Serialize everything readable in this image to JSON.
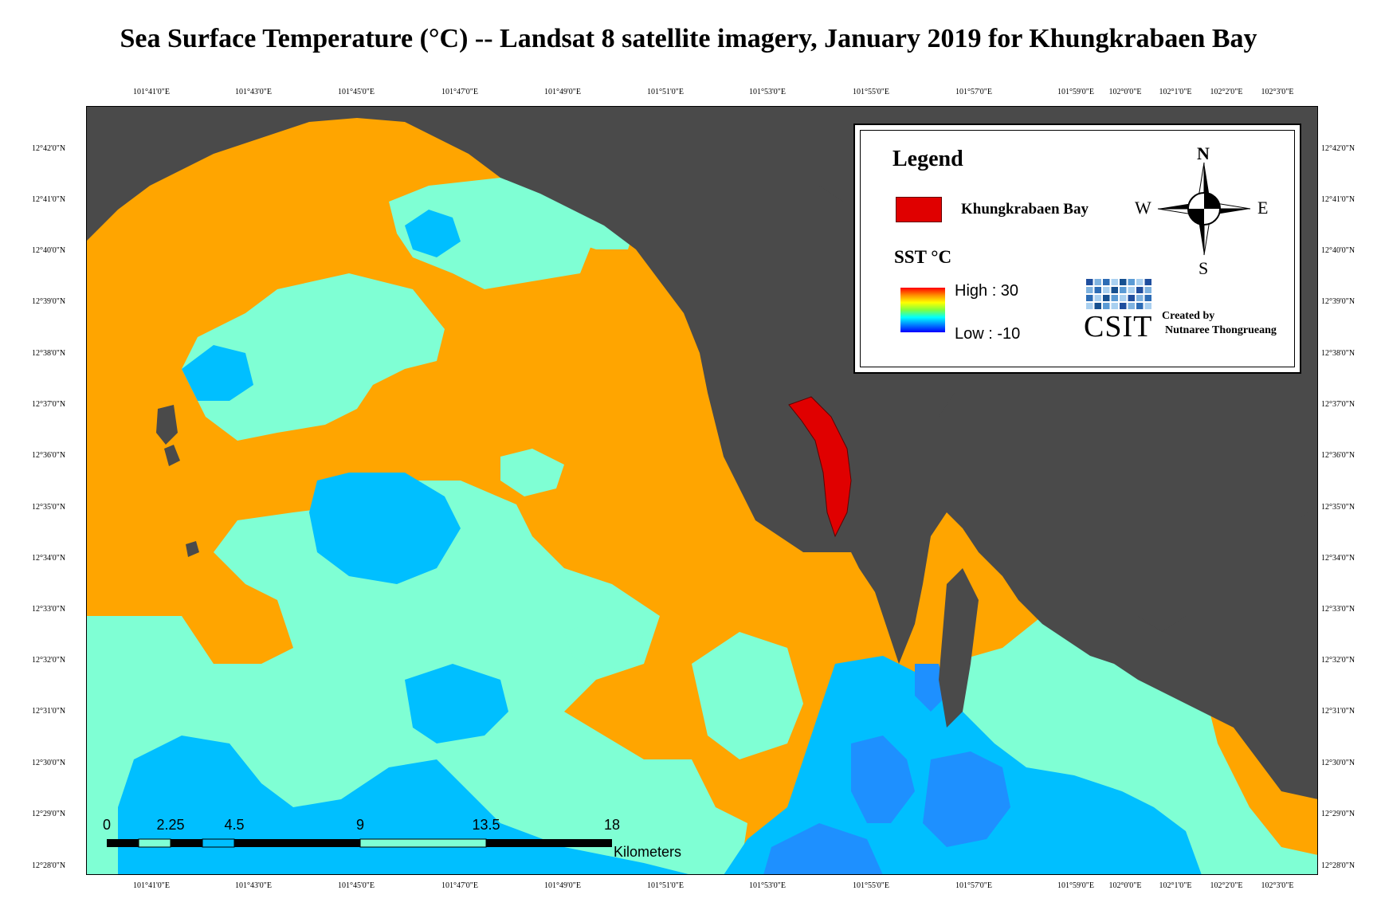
{
  "title": "Sea Surface Temperature (°C) -- Landsat 8 satellite imagery, January 2019 for Khungkrabaen Bay",
  "colors": {
    "land": "#4a4a4a",
    "sst_warm": "#ffa500",
    "sst_mid": "#7fffd4",
    "sst_cool": "#00bfff",
    "sst_cold": "#1e90ff",
    "bay": "#e00000"
  },
  "lon_labels": [
    "101°41'0\"E",
    "101°43'0\"E",
    "101°45'0\"E",
    "101°47'0\"E",
    "101°49'0\"E",
    "101°51'0\"E",
    "101°53'0\"E",
    "101°55'0\"E",
    "101°57'0\"E",
    "101°59'0\"E",
    "102°0'0\"E",
    "102°1'0\"E",
    "102°2'0\"E",
    "102°3'0\"E"
  ],
  "lat_labels": [
    "12°42'0\"N",
    "12°41'0\"N",
    "12°40'0\"N",
    "12°39'0\"N",
    "12°38'0\"N",
    "12°37'0\"N",
    "12°36'0\"N",
    "12°35'0\"N",
    "12°34'0\"N",
    "12°33'0\"N",
    "12°32'0\"N",
    "12°31'0\"N",
    "12°30'0\"N",
    "12°29'0\"N",
    "12°28'0\"N"
  ],
  "legend": {
    "title": "Legend",
    "bay_label": "Khungkrabaen Bay",
    "sst_label": "SST  °C",
    "high": "High : 30",
    "low": "Low : -10",
    "compass": {
      "n": "N",
      "s": "S",
      "e": "E",
      "w": "W"
    },
    "logo": "CSIT",
    "created_by_line1": "Created by",
    "created_by_line2": "Nutnaree Thongrueang"
  },
  "scale": {
    "ticks": [
      "0",
      "2.25",
      "4.5",
      "9",
      "13.5",
      "18"
    ],
    "units": "Kilometers"
  }
}
